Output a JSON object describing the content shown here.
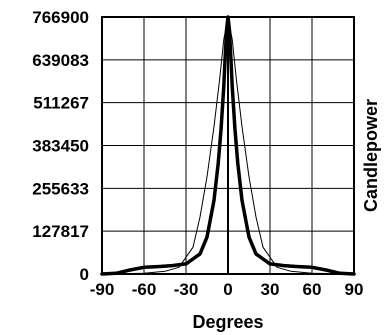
{
  "chart_data": {
    "type": "line",
    "title": "",
    "xlabel": "Degrees",
    "ylabel": "Candlepower",
    "xlim": [
      -90,
      90
    ],
    "ylim": [
      0,
      766900
    ],
    "x_ticks": [
      "-90",
      "-60",
      "-30",
      "0",
      "30",
      "60",
      "90"
    ],
    "y_ticks": [
      "766900",
      "639083",
      "511267",
      "383450",
      "255633",
      "127817",
      "0"
    ],
    "grid": true,
    "legend": "none",
    "series": [
      {
        "style": "thick",
        "color": "#000000",
        "x": [
          -90,
          -80,
          -70,
          -60,
          -50,
          -40,
          -30,
          -20,
          -15,
          -10,
          -7,
          -5,
          -3,
          -2,
          -1,
          0,
          1,
          2,
          3,
          5,
          7,
          10,
          15,
          20,
          30,
          40,
          50,
          60,
          70,
          80,
          90
        ],
        "y": [
          0,
          2000,
          12000,
          20000,
          22000,
          25000,
          30000,
          60000,
          110000,
          220000,
          330000,
          430000,
          560000,
          650000,
          730000,
          766900,
          730000,
          650000,
          560000,
          430000,
          330000,
          220000,
          110000,
          60000,
          30000,
          25000,
          22000,
          20000,
          12000,
          2000,
          0
        ]
      },
      {
        "style": "thin",
        "color": "#000000",
        "x": [
          -90,
          -60,
          -45,
          -35,
          -25,
          -20,
          -15,
          -10,
          -6,
          -3,
          0,
          3,
          6,
          10,
          15,
          20,
          25,
          35,
          45,
          60,
          90
        ],
        "y": [
          0,
          2000,
          8000,
          20000,
          80000,
          170000,
          290000,
          440000,
          580000,
          700000,
          766900,
          700000,
          580000,
          440000,
          290000,
          170000,
          80000,
          20000,
          8000,
          2000,
          0
        ]
      }
    ]
  }
}
